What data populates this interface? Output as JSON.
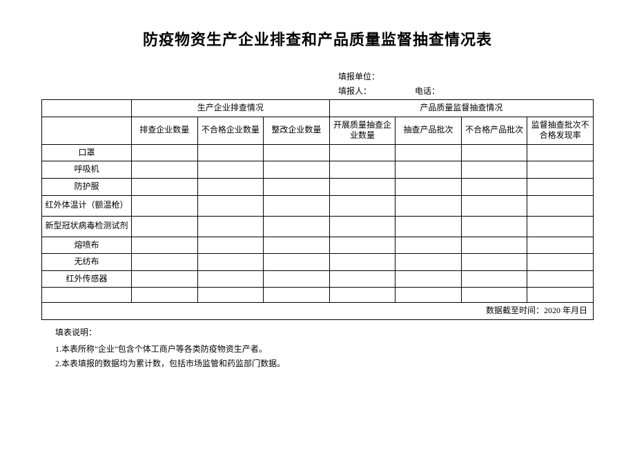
{
  "title": "防疫物资生产企业排查和产品质量监督抽查情况表",
  "meta": {
    "unit_label": "填报单位：",
    "reporter_label": "填报人：",
    "phone_label": "电话："
  },
  "table": {
    "group_headers": {
      "left_blank": "",
      "group1": "生产企业排查情况",
      "group2": "产品质量监督抽查情况"
    },
    "col_headers": {
      "blank": "",
      "c1": "排查企业数量",
      "c2": "不合格企业数量",
      "c3": "整改企业数量",
      "c4": "开展质量抽查企业数量",
      "c5": "抽查产品批次",
      "c6": "不合格产品批次",
      "c7": "监督抽查批次不合格发现率"
    },
    "row_labels": [
      "口罩",
      "呼吸机",
      "防护服",
      "红外体温计（额温枪）",
      "新型冠状病毒检测试剂",
      "熔喷布",
      "无纺布",
      "红外传感器",
      ""
    ],
    "footer": "数据截至时间：2020 年月日"
  },
  "notes": {
    "heading": "填表说明：",
    "n1": "1.本表所称\"企业\"包含个体工商户等各类防疫物资生产者。",
    "n2": "2.本表填报的数据均为累计数，包括市场监管和药监部门数据。"
  },
  "style": {
    "background_color": "#ffffff",
    "text_color": "#000000",
    "border_color": "#000000",
    "title_fontsize": 22,
    "body_fontsize": 12,
    "font_family": "SimSun"
  }
}
